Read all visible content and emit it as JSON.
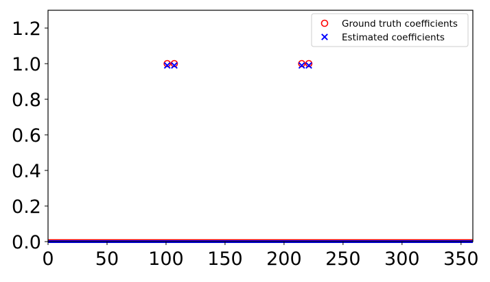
{
  "chart_data": {
    "type": "scatter",
    "title": "",
    "xlabel": "",
    "ylabel": "",
    "xlim": [
      0,
      360
    ],
    "ylim": [
      0,
      1.3
    ],
    "x_ticks": [
      0,
      50,
      100,
      150,
      200,
      250,
      300,
      350
    ],
    "y_ticks": [
      0.0,
      0.2,
      0.4,
      0.6,
      0.8,
      1.0,
      1.2
    ],
    "y_tick_labels": [
      "0.0",
      "0.2",
      "0.4",
      "0.6",
      "0.8",
      "1.0",
      "1.2"
    ],
    "grid": false,
    "legend_position": "top-right",
    "series": [
      {
        "name": "Ground truth coefficients",
        "marker": "circle-open",
        "color": "#ff0000",
        "x": [
          101,
          107,
          215,
          221
        ],
        "y": [
          1.0,
          1.0,
          1.0,
          1.0
        ],
        "baseline": {
          "x_start": 0,
          "x_end": 360,
          "y": 0.0
        }
      },
      {
        "name": "Estimated coefficients",
        "marker": "x",
        "color": "#0000ff",
        "x": [
          101,
          107,
          215,
          221
        ],
        "y": [
          0.99,
          0.99,
          0.99,
          0.99
        ],
        "baseline": {
          "x_start": 0,
          "x_end": 360,
          "y": 0.0
        }
      }
    ]
  }
}
